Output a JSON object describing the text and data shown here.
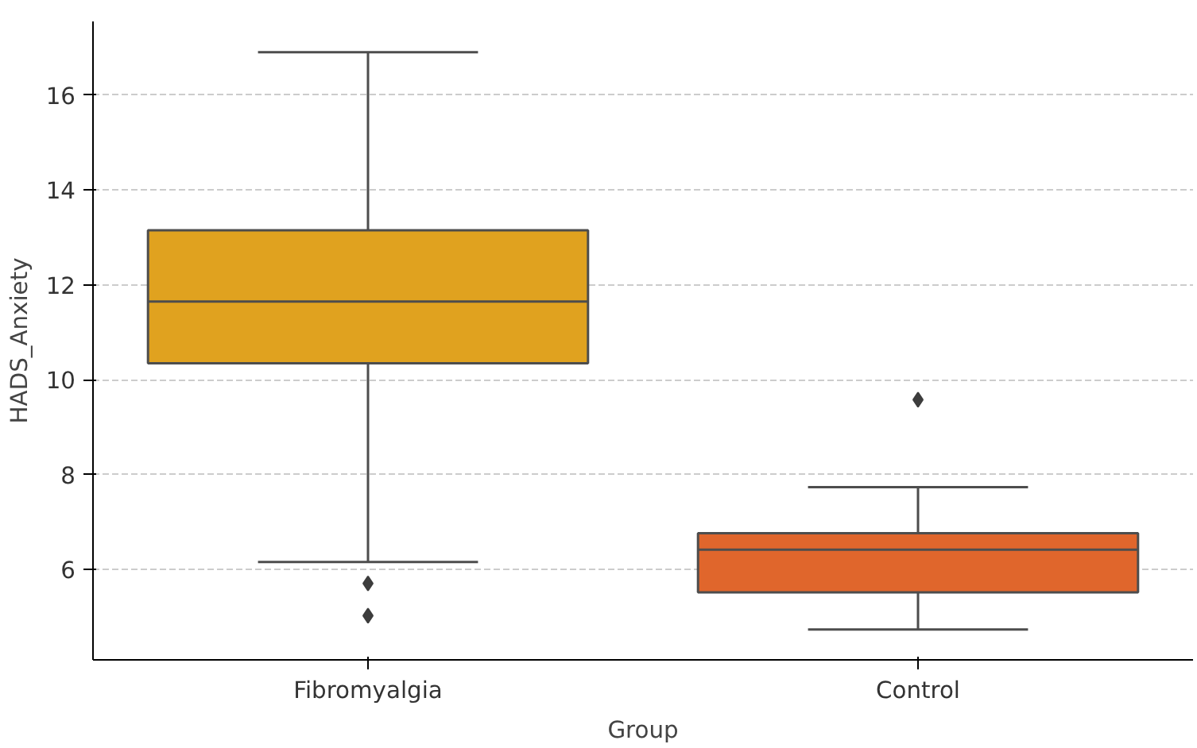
{
  "chart_data": {
    "type": "box",
    "xlabel": "Group",
    "ylabel": "HADS_Anxiety",
    "categories": [
      "Fibromyalgia",
      "Control"
    ],
    "colors": [
      "#e0a21f",
      "#e0662c"
    ],
    "boxes": [
      {
        "low": 6.16,
        "q1": 10.35,
        "median": 11.65,
        "q3": 13.15,
        "high": 16.9,
        "outliers": [
          5.71,
          5.03
        ]
      },
      {
        "low": 4.74,
        "q1": 5.52,
        "median": 6.42,
        "q3": 6.77,
        "high": 7.74,
        "outliers": [
          9.58
        ]
      }
    ],
    "ylim": [
      4.1,
      17.55
    ],
    "yticks": [
      6,
      8,
      10,
      12,
      14,
      16
    ],
    "grid": "y",
    "marker": "diamond"
  }
}
